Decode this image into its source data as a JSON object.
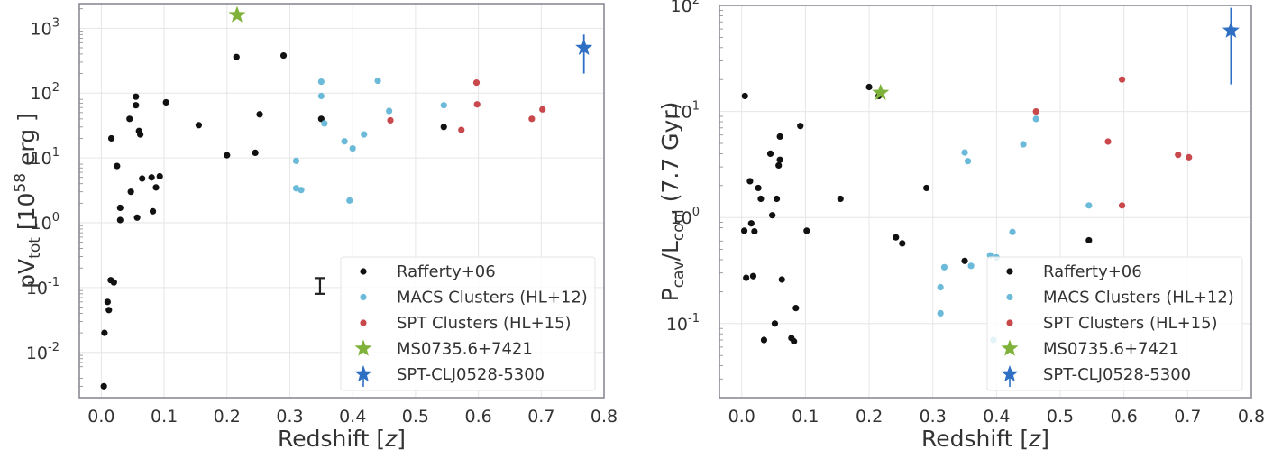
{
  "chart_data": [
    {
      "type": "scatter",
      "xlabel": "Redshift [z]",
      "ylabel": "pV_tot [10^58 erg]",
      "ylabel_parts": {
        "main": "pV",
        "sub": "tot",
        "pre": " [10",
        "sup": "58",
        "post": " erg ]"
      },
      "xlabel_parts": {
        "main": "Redshift [",
        "italic": "z",
        "post": "]"
      },
      "xlim": [
        -0.035,
        0.8
      ],
      "ylim": [
        0.002,
        2400
      ],
      "yscale": "log",
      "xticks": [
        "0.0",
        "0.1",
        "0.2",
        "0.3",
        "0.4",
        "0.5",
        "0.6",
        "0.7",
        "0.8"
      ],
      "yticks": [
        {
          "base": "10",
          "exp": "-2"
        },
        {
          "base": "10",
          "exp": "-1"
        },
        {
          "base": "10",
          "exp": "0"
        },
        {
          "base": "10",
          "exp": "1"
        },
        {
          "base": "10",
          "exp": "2"
        },
        {
          "base": "10",
          "exp": "3"
        }
      ],
      "grid": true,
      "legend_position": "bottom-right",
      "error_bar_annotation": {
        "x": 0.348,
        "y_low": 0.08,
        "y_high": 0.14
      },
      "series": [
        {
          "name": "Rafferty+06",
          "marker": "circle",
          "color": "#111111",
          "points": [
            [
              0.004,
              0.003
            ],
            [
              0.005,
              0.02
            ],
            [
              0.01,
              0.06
            ],
            [
              0.012,
              0.045
            ],
            [
              0.015,
              0.13
            ],
            [
              0.02,
              0.12
            ],
            [
              0.016,
              20
            ],
            [
              0.025,
              7.5
            ],
            [
              0.03,
              1.1
            ],
            [
              0.03,
              1.7
            ],
            [
              0.045,
              40
            ],
            [
              0.047,
              3
            ],
            [
              0.055,
              88
            ],
            [
              0.055,
              65
            ],
            [
              0.057,
              1.2
            ],
            [
              0.06,
              26
            ],
            [
              0.062,
              23
            ],
            [
              0.065,
              4.8
            ],
            [
              0.08,
              5
            ],
            [
              0.082,
              1.5
            ],
            [
              0.087,
              3.5
            ],
            [
              0.093,
              5.2
            ],
            [
              0.103,
              72
            ],
            [
              0.155,
              32
            ],
            [
              0.2,
              11
            ],
            [
              0.215,
              360
            ],
            [
              0.245,
              12
            ],
            [
              0.252,
              47
            ],
            [
              0.29,
              380
            ],
            [
              0.35,
              40
            ],
            [
              0.545,
              30
            ]
          ]
        },
        {
          "name": "MACS Clusters (HL+12)",
          "marker": "circle",
          "color": "#6bbad9",
          "points": [
            [
              0.31,
              9
            ],
            [
              0.31,
              3.4
            ],
            [
              0.318,
              3.2
            ],
            [
              0.35,
              150
            ],
            [
              0.35,
              90
            ],
            [
              0.355,
              34
            ],
            [
              0.387,
              18
            ],
            [
              0.395,
              2.2
            ],
            [
              0.4,
              14
            ],
            [
              0.418,
              23
            ],
            [
              0.44,
              155
            ],
            [
              0.458,
              53
            ],
            [
              0.545,
              65
            ]
          ]
        },
        {
          "name": "SPT Clusters (HL+15)",
          "marker": "circle",
          "color": "#c8484c",
          "points": [
            [
              0.46,
              38
            ],
            [
              0.573,
              27
            ],
            [
              0.597,
              145
            ],
            [
              0.598,
              67
            ],
            [
              0.685,
              40
            ],
            [
              0.702,
              56
            ]
          ]
        },
        {
          "name": "MS0735.6+7421",
          "marker": "star",
          "color": "#7fb23a",
          "points": [
            [
              0.216,
              1600
            ]
          ]
        },
        {
          "name": "SPT-CLJ0528-5300",
          "marker": "star",
          "color": "#2e6fc4",
          "points": [
            [
              0.768,
              500
            ]
          ],
          "error": [
            [
              0.768,
              200,
              800
            ]
          ]
        }
      ]
    },
    {
      "type": "scatter",
      "xlabel": "Redshift [z]",
      "ylabel": "P_cav/L_cool (7.7 Gyr)",
      "ylabel_parts": {
        "p1": "P",
        "s1": "cav",
        "mid": "/L",
        "s2": "cool",
        "post": " (7.7 Gyr)"
      },
      "xlabel_parts": {
        "main": "Redshift [",
        "italic": "z",
        "post": "]"
      },
      "xlim": [
        -0.035,
        0.8
      ],
      "ylim": [
        0.02,
        100
      ],
      "yscale": "log",
      "xticks": [
        "0.0",
        "0.1",
        "0.2",
        "0.3",
        "0.4",
        "0.5",
        "0.6",
        "0.7",
        "0.8"
      ],
      "yticks": [
        {
          "base": "10",
          "exp": "-1"
        },
        {
          "base": "10",
          "exp": "0"
        },
        {
          "base": "10",
          "exp": "1"
        },
        {
          "base": "10",
          "exp": "2"
        }
      ],
      "grid": true,
      "legend_position": "bottom-right",
      "series": [
        {
          "name": "Rafferty+06",
          "marker": "circle",
          "color": "#111111",
          "points": [
            [
              0.005,
              14
            ],
            [
              0.004,
              0.75
            ],
            [
              0.007,
              0.27
            ],
            [
              0.013,
              2.2
            ],
            [
              0.015,
              0.88
            ],
            [
              0.018,
              0.28
            ],
            [
              0.02,
              0.74
            ],
            [
              0.026,
              1.9
            ],
            [
              0.03,
              1.5
            ],
            [
              0.035,
              0.07
            ],
            [
              0.045,
              4
            ],
            [
              0.048,
              1.05
            ],
            [
              0.052,
              0.1
            ],
            [
              0.055,
              1.5
            ],
            [
              0.058,
              3.1
            ],
            [
              0.06,
              3.5
            ],
            [
              0.06,
              5.8
            ],
            [
              0.063,
              0.26
            ],
            [
              0.078,
              0.073
            ],
            [
              0.082,
              0.068
            ],
            [
              0.085,
              0.14
            ],
            [
              0.092,
              7.3
            ],
            [
              0.102,
              0.75
            ],
            [
              0.155,
              1.5
            ],
            [
              0.2,
              17
            ],
            [
              0.215,
              14
            ],
            [
              0.242,
              0.65
            ],
            [
              0.252,
              0.57
            ],
            [
              0.29,
              1.9
            ],
            [
              0.35,
              0.39
            ],
            [
              0.545,
              0.61
            ]
          ]
        },
        {
          "name": "MACS Clusters (HL+12)",
          "marker": "circle",
          "color": "#6bbad9",
          "points": [
            [
              0.312,
              0.22
            ],
            [
              0.312,
              0.125
            ],
            [
              0.318,
              0.34
            ],
            [
              0.35,
              4.1
            ],
            [
              0.355,
              3.4
            ],
            [
              0.36,
              0.35
            ],
            [
              0.39,
              0.44
            ],
            [
              0.395,
              0.07
            ],
            [
              0.4,
              0.42
            ],
            [
              0.425,
              0.73
            ],
            [
              0.442,
              4.9
            ],
            [
              0.462,
              8.5
            ],
            [
              0.545,
              1.3
            ]
          ]
        },
        {
          "name": "SPT Clusters (HL+15)",
          "marker": "circle",
          "color": "#c8484c",
          "points": [
            [
              0.462,
              10
            ],
            [
              0.575,
              5.2
            ],
            [
              0.597,
              20
            ],
            [
              0.597,
              1.3
            ],
            [
              0.685,
              3.9
            ],
            [
              0.702,
              3.7
            ]
          ]
        },
        {
          "name": "MS0735.6+7421",
          "marker": "star",
          "color": "#7fb23a",
          "points": [
            [
              0.218,
              15
            ]
          ]
        },
        {
          "name": "SPT-CLJ0528-5300",
          "marker": "star",
          "color": "#2e6fc4",
          "points": [
            [
              0.768,
              58
            ]
          ],
          "error": [
            [
              0.768,
              18,
              95
            ]
          ]
        }
      ]
    }
  ]
}
